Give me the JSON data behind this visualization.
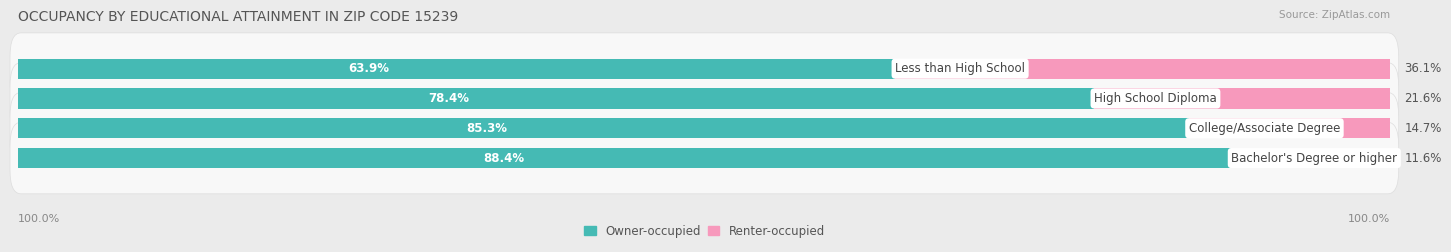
{
  "title": "OCCUPANCY BY EDUCATIONAL ATTAINMENT IN ZIP CODE 15239",
  "source": "Source: ZipAtlas.com",
  "categories": [
    "Less than High School",
    "High School Diploma",
    "College/Associate Degree",
    "Bachelor's Degree or higher"
  ],
  "owner_pct": [
    63.9,
    78.4,
    85.3,
    88.4
  ],
  "renter_pct": [
    36.1,
    21.6,
    14.7,
    11.6
  ],
  "owner_color": "#45BAB4",
  "renter_color": "#F799BC",
  "bg_color": "#ebebeb",
  "bar_bg_color": "#f8f8f8",
  "bar_bg_outline": "#dddddd",
  "title_fontsize": 10,
  "label_fontsize": 8.5,
  "cat_fontsize": 8.5,
  "axis_label_fontsize": 8,
  "legend_fontsize": 8.5,
  "bar_height": 0.68,
  "left_axis_label": "100.0%",
  "right_axis_label": "100.0%"
}
